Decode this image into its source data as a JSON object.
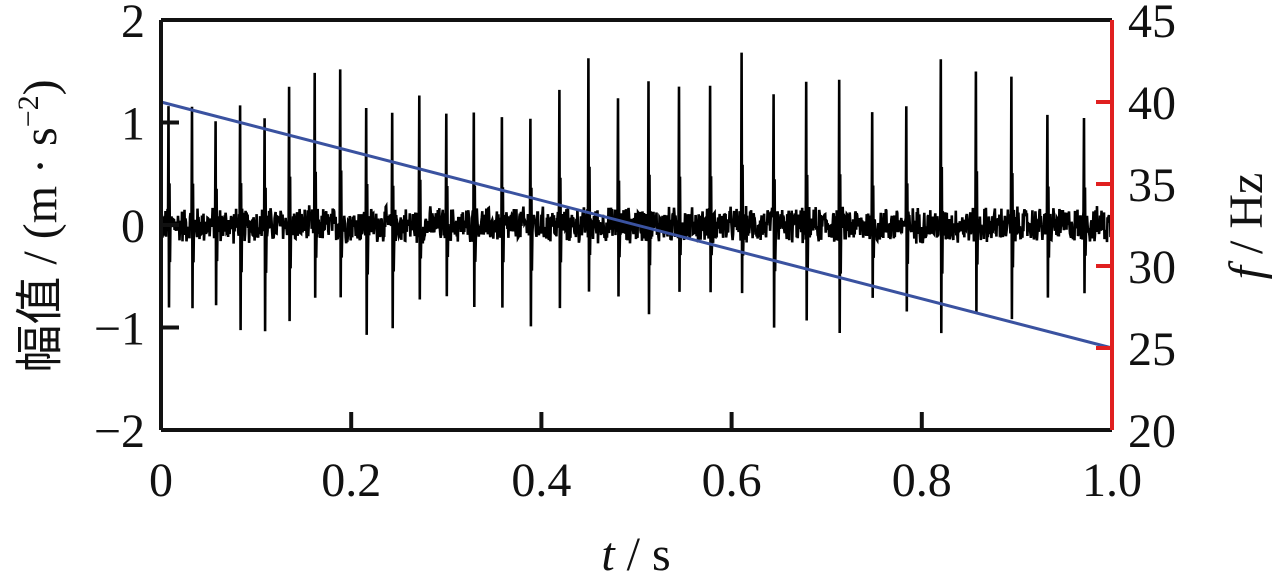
{
  "chart_data": {
    "type": "line",
    "xlabel": {
      "var": "t",
      "sep": " / ",
      "unit": "s"
    },
    "ylabel_left": {
      "prefix": "幅值 / (m · s",
      "sup": "−2",
      "suffix": ")"
    },
    "ylabel_right": {
      "var": "f",
      "sep": " / ",
      "unit": "Hz"
    },
    "xlim": [
      0,
      1.0
    ],
    "ylim_left": [
      -2,
      2
    ],
    "ylim_right": [
      20,
      45
    ],
    "x_ticks": [
      "0",
      "0.2",
      "0.4",
      "0.6",
      "0.8",
      "1.0"
    ],
    "x_tick_values": [
      0,
      0.2,
      0.4,
      0.6,
      0.8,
      1.0
    ],
    "y_left_ticks": [
      "2",
      "1",
      "0",
      "−1",
      "−2"
    ],
    "y_left_tick_values": [
      2,
      1,
      0,
      -1,
      -2
    ],
    "y_right_ticks": [
      "45",
      "40",
      "35",
      "30",
      "25",
      "20"
    ],
    "y_right_tick_values": [
      45,
      40,
      35,
      30,
      25,
      20
    ],
    "series": [
      {
        "axis": "left",
        "color": "#000000",
        "description": "vibration acceleration signal with periodic impulses",
        "x_range": [
          0,
          1.0
        ],
        "noise_amplitude": 0.2,
        "impulse_peak_range": [
          1.0,
          1.7
        ],
        "impulse_trough_range": [
          -0.6,
          -1.1
        ],
        "impulse_interval_s_start": 0.0245,
        "impulse_interval_s_end": 0.0395
      },
      {
        "axis": "right",
        "color": "#3a52a0",
        "description": "rotational frequency",
        "x": [
          0,
          1.0
        ],
        "y": [
          40.0,
          25.0
        ]
      }
    ],
    "right_axis_color": "#e02020"
  }
}
